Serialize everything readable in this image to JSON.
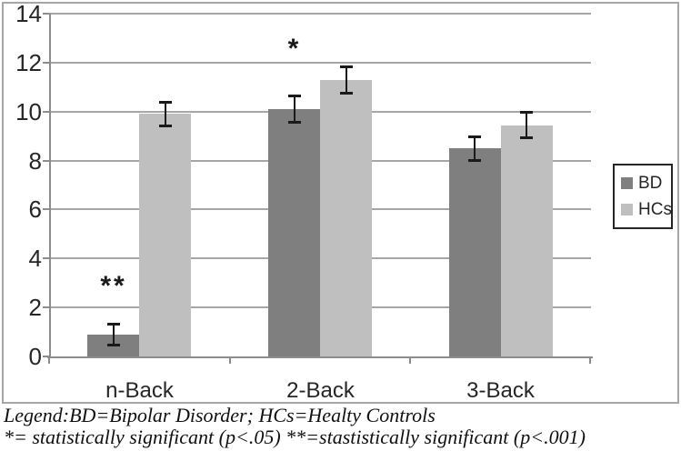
{
  "chart_data": {
    "type": "bar",
    "title": "",
    "xlabel": "",
    "ylabel": "",
    "categories": [
      "n-Back",
      "2-Back",
      "3-Back"
    ],
    "series": [
      {
        "name": "BD",
        "color": "#7f7f7f",
        "values": [
          0.9,
          10.1,
          8.5
        ],
        "errors": [
          0.45,
          0.55,
          0.5
        ]
      },
      {
        "name": "HCs",
        "color": "#bfbfbf",
        "values": [
          9.9,
          11.3,
          9.45
        ],
        "errors": [
          0.5,
          0.55,
          0.55
        ]
      }
    ],
    "annotations": [
      {
        "text": "**",
        "category_index": 0,
        "series_index": 0,
        "y": 3.0
      },
      {
        "text": "*",
        "category_index": 1,
        "series_index": 0,
        "y": 12.7
      }
    ],
    "ylim": [
      0,
      14
    ],
    "yticks": [
      0,
      2,
      4,
      6,
      8,
      10,
      12,
      14
    ],
    "grid": true,
    "legend_position": "right"
  },
  "legend": {
    "items": [
      {
        "label": "BD",
        "color": "#7f7f7f"
      },
      {
        "label": "HCs",
        "color": "#bfbfbf"
      }
    ]
  },
  "caption": {
    "line1": "Legend:BD=Bipolar Disorder; HCs=Healty Controls",
    "line2": "*= statistically significant (p<.05) **=stastistically significant (p<.001)"
  },
  "colors": {
    "bd_bar": "#7f7f7f",
    "hcs_bar": "#bfbfbf",
    "gridline": "#a6a6a6",
    "axis": "#8c8c8c",
    "error_bar": "#1a1a1a",
    "figure_border": "#a6a6a6"
  }
}
